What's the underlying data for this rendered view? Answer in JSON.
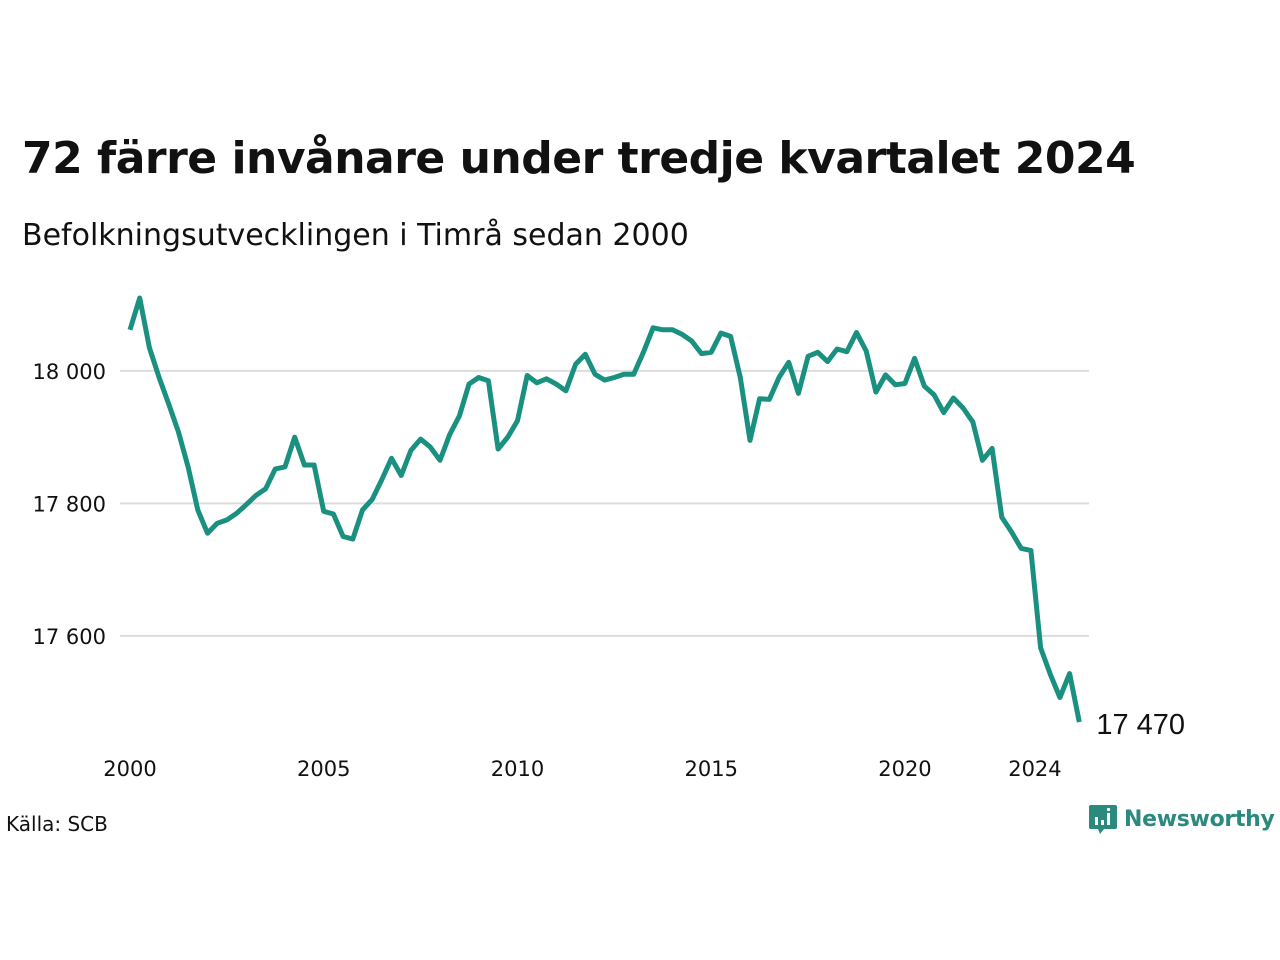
{
  "title": "72 färre invånare under tredje kvartalet 2024",
  "subtitle": "Befolkningsutvecklingen i Timrå sedan 2000",
  "source": "Källa: SCB",
  "brand": "Newsworthy",
  "colors": {
    "line": "#1a9080",
    "grid": "#dddddd",
    "brand": "#2b8a7e"
  },
  "chart_data": {
    "type": "line",
    "xlim": [
      2000,
      2024.75
    ],
    "ylim": [
      17470,
      18110
    ],
    "x_ticks": [
      2000,
      2005,
      2010,
      2015,
      2020,
      2024
    ],
    "x_tick_labels": [
      "2000",
      "2005",
      "2010",
      "2015",
      "2020",
      "2024"
    ],
    "y_ticks": [
      17600,
      17800,
      18000
    ],
    "y_tick_labels": [
      "17 600",
      "17 800",
      "18 000"
    ],
    "grid": "horizontal",
    "end_label": "17 470",
    "series": [
      {
        "x": [
          2000.0,
          2000.25,
          2000.5,
          2000.75,
          2001.0,
          2001.25,
          2001.5,
          2001.75,
          2002.0,
          2002.25,
          2002.5,
          2002.75,
          2003.0,
          2003.25,
          2003.5,
          2003.75,
          2004.0,
          2004.25,
          2004.5,
          2004.75,
          2005.0,
          2005.25,
          2005.5,
          2005.75,
          2006.0,
          2006.25,
          2006.5,
          2006.75,
          2007.0,
          2007.25,
          2007.5,
          2007.75,
          2008.0,
          2008.25,
          2008.5,
          2008.75,
          2009.0,
          2009.25,
          2009.5,
          2009.75,
          2010.0,
          2010.25,
          2010.5,
          2010.75,
          2011.0,
          2011.25,
          2011.5,
          2011.75,
          2012.0,
          2012.25,
          2012.5,
          2012.75,
          2013.0,
          2013.25,
          2013.5,
          2013.75,
          2014.0,
          2014.25,
          2014.5,
          2014.75,
          2015.0,
          2015.25,
          2015.5,
          2015.75,
          2016.0,
          2016.25,
          2016.5,
          2016.75,
          2017.0,
          2017.25,
          2017.5,
          2017.75,
          2018.0,
          2018.25,
          2018.5,
          2018.75,
          2019.0,
          2019.25,
          2019.5,
          2019.75,
          2020.0,
          2020.25,
          2020.5,
          2020.75,
          2021.0,
          2021.25,
          2021.5,
          2021.75,
          2022.0,
          2022.25,
          2022.5,
          2022.75,
          2023.0,
          2023.25,
          2023.5,
          2023.75,
          2024.0,
          2024.25,
          2024.5
        ],
        "values": [
          18062,
          18110,
          18035,
          17990,
          17950,
          17908,
          17855,
          17790,
          17755,
          17770,
          17775,
          17785,
          17798,
          17812,
          17822,
          17852,
          17855,
          17900,
          17858,
          17858,
          17788,
          17784,
          17750,
          17746,
          17790,
          17806,
          17836,
          17868,
          17842,
          17880,
          17897,
          17885,
          17865,
          17904,
          17932,
          17980,
          17990,
          17985,
          17882,
          17900,
          17925,
          17993,
          17982,
          17988,
          17980,
          17970,
          18010,
          18025,
          17995,
          17986,
          17990,
          17995,
          17995,
          18028,
          18065,
          18062,
          18062,
          18055,
          18045,
          18026,
          18028,
          18057,
          18052,
          17990,
          17895,
          17958,
          17957,
          17990,
          18013,
          17966,
          18022,
          18028,
          18014,
          18033,
          18029,
          18058,
          18030,
          17968,
          17994,
          17979,
          17981,
          18019,
          17977,
          17964,
          17937,
          17959,
          17944,
          17923,
          17865,
          17883,
          17779,
          17757,
          17732,
          17729,
          17582,
          17542,
          17507,
          17543,
          17470
        ]
      }
    ]
  }
}
